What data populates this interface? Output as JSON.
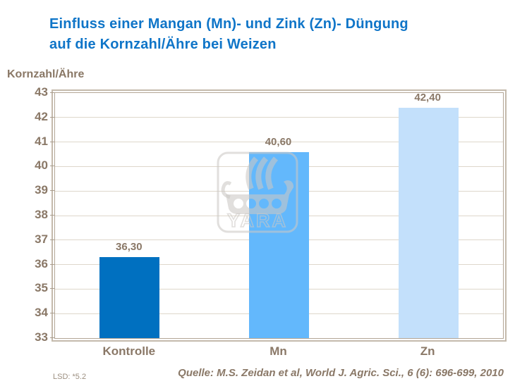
{
  "title": {
    "line1": "Einfluss einer Mangan (Mn)- und Zink (Zn)- Düngung",
    "line2": "auf die Kornzahl/Ähre bei Weizen"
  },
  "axis_title": "Kornzahl/Ähre",
  "footnote": "LSD: *5.2",
  "source": "Quelle: M.S. Zeidan et al, World J. Agric. Sci., 6 (6): 696-699, 2010",
  "watermark_text": "YARA",
  "colors": {
    "title_blue": "#0f75c8",
    "axis_text_brown": "#8a7867",
    "gridline": "#ded7cb",
    "axis_line": "#a99c8d",
    "plot_border": "#b3a696",
    "footnote_gray": "#9c8f80"
  },
  "chart_data": {
    "type": "bar",
    "title": "Einfluss einer Mangan (Mn)- und Zink (Zn)- Düngung auf die Kornzahl/Ähre bei Weizen",
    "categories": [
      "Kontrolle",
      "Mn",
      "Zn"
    ],
    "values": [
      36.3,
      40.6,
      42.4
    ],
    "value_labels": [
      "36,30",
      "40,60",
      "42,40"
    ],
    "bar_colors": [
      "#0070c0",
      "#63b8fc",
      "#c3e0fb"
    ],
    "xlabel": "",
    "ylabel": "Kornzahl/Ähre",
    "ylim": [
      33,
      43
    ],
    "ytick_step": 1,
    "yticks": [
      33,
      34,
      35,
      36,
      37,
      38,
      39,
      40,
      41,
      42,
      43
    ],
    "grid": true,
    "legend": false
  }
}
